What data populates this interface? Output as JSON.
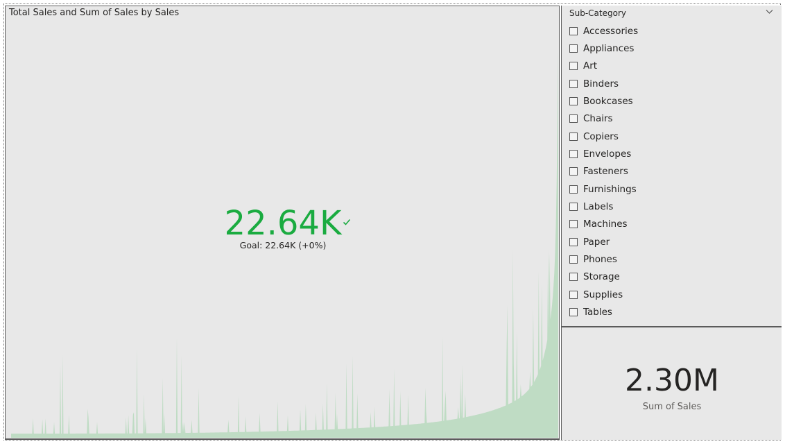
{
  "kpi": {
    "title": "Total Sales and Sum of Sales by Sales",
    "value": "22.64K",
    "goal_label": "Goal: 22.64K (+0%)",
    "status_icon": "check-icon",
    "value_color": "#1aab40",
    "trend_color": "#bfdcc4"
  },
  "slicer": {
    "header": "Sub-Category",
    "items": [
      {
        "label": "Accessories",
        "checked": false
      },
      {
        "label": "Appliances",
        "checked": false
      },
      {
        "label": "Art",
        "checked": false
      },
      {
        "label": "Binders",
        "checked": false
      },
      {
        "label": "Bookcases",
        "checked": false
      },
      {
        "label": "Chairs",
        "checked": false
      },
      {
        "label": "Copiers",
        "checked": false
      },
      {
        "label": "Envelopes",
        "checked": false
      },
      {
        "label": "Fasteners",
        "checked": false
      },
      {
        "label": "Furnishings",
        "checked": false
      },
      {
        "label": "Labels",
        "checked": false
      },
      {
        "label": "Machines",
        "checked": false
      },
      {
        "label": "Paper",
        "checked": false
      },
      {
        "label": "Phones",
        "checked": false
      },
      {
        "label": "Storage",
        "checked": false
      },
      {
        "label": "Supplies",
        "checked": false
      },
      {
        "label": "Tables",
        "checked": false
      }
    ]
  },
  "card": {
    "value": "2.30M",
    "label": "Sum of Sales"
  }
}
